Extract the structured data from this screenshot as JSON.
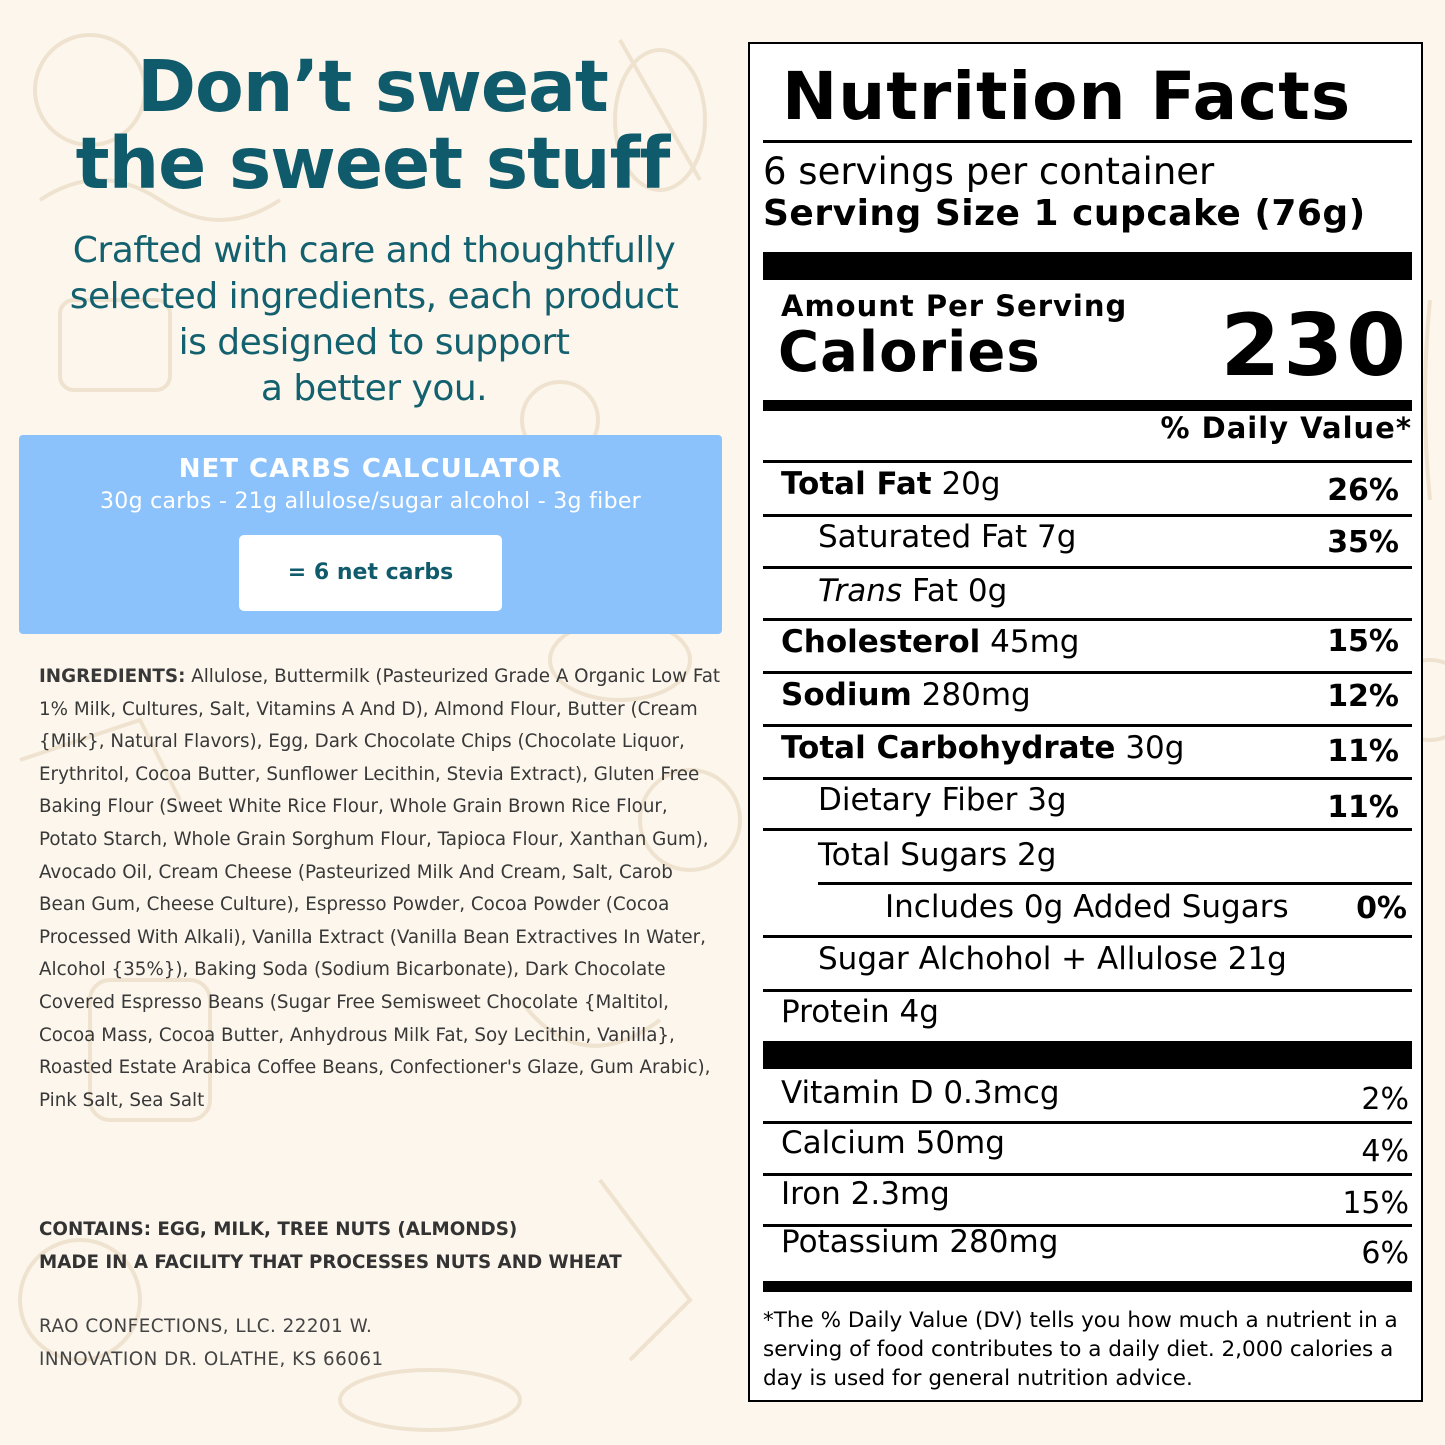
{
  "promo": {
    "headline_line1": "Don’t sweat",
    "headline_line2": "the sweet stuff",
    "sub_line1": "Crafted with care and thoughtfully",
    "sub_line2": "selected ingredients, each product",
    "sub_line3": "is designed to support",
    "sub_line4": "a better you."
  },
  "calculator": {
    "title": "NET CARBS CALCULATOR",
    "formula": "30g carbs - 21g allulose/sugar alcohol - 3g fiber",
    "result": "= 6 net carbs"
  },
  "ingredients": {
    "label": "INGREDIENTS:",
    "text": "Allulose, Buttermilk (Pasteurized Grade A Organic Low Fat 1% Milk, Cultures, Salt, Vitamins A And D), Almond Flour, Butter (Cream {Milk}, Natural Flavors), Egg, Dark Chocolate Chips (Chocolate Liquor, Erythritol, Cocoa Butter, Sunflower Lecithin, Stevia Extract), Gluten Free Baking Flour (Sweet White Rice Flour, Whole Grain Brown Rice Flour, Potato Starch, Whole Grain Sorghum Flour, Tapioca Flour, Xanthan Gum), Avocado Oil, Cream Cheese (Pasteurized Milk And Cream, Salt, Carob Bean Gum, Cheese Culture), Espresso Powder, Cocoa Powder (Cocoa Processed With Alkali), Vanilla Extract (Vanilla Bean Extractives In Water, Alcohol {35%}), Baking Soda (Sodium Bicarbonate), Dark Chocolate Covered Espresso Beans (Sugar Free Semisweet Chocolate {Maltitol, Cocoa Mass, Cocoa Butter, Anhydrous Milk Fat, Soy Lecithin, Vanilla}, Roasted Estate Arabica Coffee Beans, Confectioner's Glaze, Gum Arabic), Pink Salt, Sea Salt"
  },
  "allergens": {
    "contains": "CONTAINS: EGG, MILK, TREE NUTS (ALMONDS)",
    "facility": "MADE IN A FACILITY THAT PROCESSES NUTS AND WHEAT"
  },
  "company": {
    "line1": "RAO CONFECTIONS, LLC. 22201 W.",
    "line2": "INNOVATION DR. OLATHE, KS 66061"
  },
  "nutrition": {
    "title": "Nutrition Facts",
    "servings": "6 servings per container",
    "serving_size": "Serving Size 1 cupcake (76g)",
    "amount_per_serving": "Amount Per Serving",
    "calories_label": "Calories",
    "calories_value": "230",
    "dv_header": "% Daily Value*",
    "total_fat": {
      "label": "Total Fat",
      "amount": "20g",
      "dv": "26%"
    },
    "saturated_fat": {
      "label": "Saturated Fat 7g",
      "dv": "35%"
    },
    "trans_fat": {
      "label_italic": "Trans",
      "label_rest": "Fat 0g"
    },
    "cholesterol": {
      "label": "Cholesterol",
      "amount": "45mg",
      "dv": "15%"
    },
    "sodium": {
      "label": "Sodium",
      "amount": "280mg",
      "dv": "12%"
    },
    "total_carb": {
      "label": "Total Carbohydrate",
      "amount": "30g",
      "dv": "11%"
    },
    "fiber": {
      "label": "Dietary Fiber 3g",
      "dv": "11%"
    },
    "total_sugars": {
      "label": "Total Sugars 2g"
    },
    "added_sugars": {
      "label": "Includes 0g Added Sugars",
      "dv": "0%"
    },
    "sugar_alcohol": {
      "label": "Sugar Alchohol + Allulose 21g"
    },
    "protein": {
      "label": "Protein 4g"
    },
    "vitamin_d": {
      "label": "Vitamin D 0.3mcg",
      "dv": "2%"
    },
    "calcium": {
      "label": "Calcium 50mg",
      "dv": "4%"
    },
    "iron": {
      "label": "Iron 2.3mg",
      "dv": "15%"
    },
    "potassium": {
      "label": "Potassium 280mg",
      "dv": "6%"
    },
    "footnote": "*The % Daily Value (DV) tells you how much a nutrient in a serving of food contributes to a daily diet. 2,000 calories a day is used for general nutrition advice."
  }
}
